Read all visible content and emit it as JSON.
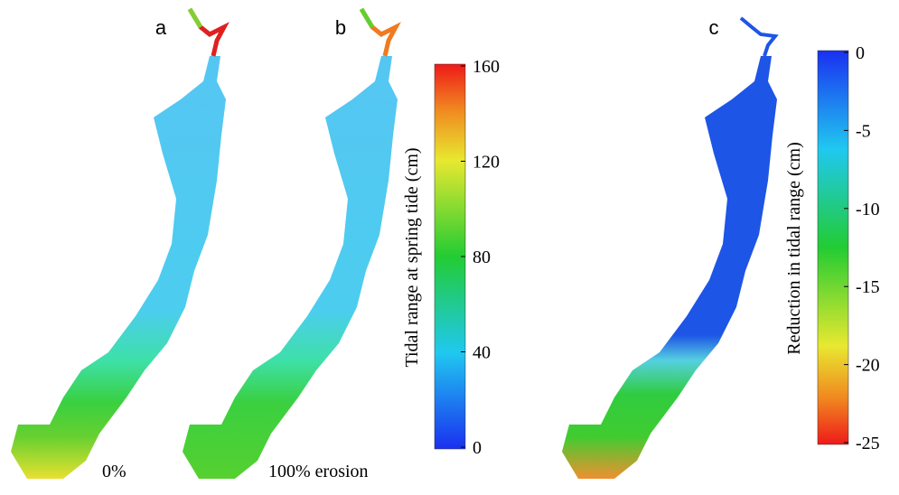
{
  "panels": [
    {
      "label": "a",
      "annotation": "0%"
    },
    {
      "label": "b",
      "annotation": "100% erosion"
    },
    {
      "label": "c"
    }
  ],
  "colorbars": [
    {
      "title": "Tidal range at spring tide (cm)",
      "lim": [
        0,
        160
      ],
      "ticks": [
        0,
        40,
        80,
        120,
        160
      ]
    },
    {
      "title": "Reduction in tidal range (cm)",
      "lim": [
        -25,
        0
      ],
      "ticks": [
        0,
        -5,
        -10,
        -15,
        -20,
        -25
      ]
    }
  ]
}
